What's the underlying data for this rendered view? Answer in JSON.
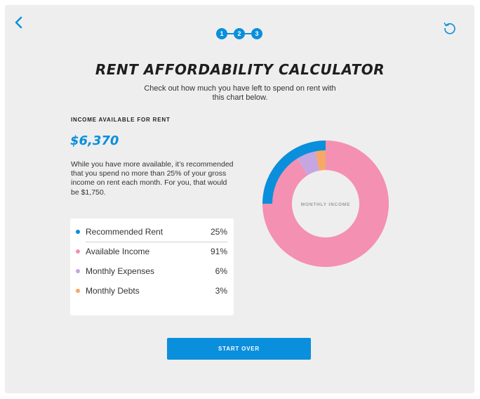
{
  "steps": [
    "1",
    "2",
    "3"
  ],
  "title": "RENT AFFORDABILITY CALCULATOR",
  "subtitle": "Check out how much you have left to spend on rent with this chart below.",
  "income": {
    "label": "INCOME AVAILABLE FOR RENT",
    "amount": "$6,370",
    "description": "While you have more available, it’s recommended that you spend no more than 25% of your gross income on rent each month. For you, that would be $1,750."
  },
  "legend": [
    {
      "label": "Recommended Rent",
      "value": "25%",
      "color": "#0a8fdc"
    },
    {
      "label": "Available Income",
      "value": "91%",
      "color": "#f490b1"
    },
    {
      "label": "Monthly Expenses",
      "value": "6%",
      "color": "#c6a6e0"
    },
    {
      "label": "Monthly Debts",
      "value": "3%",
      "color": "#f7a866"
    }
  ],
  "chart": {
    "center_label": "MONTHLY INCOME",
    "recommended_rent_fraction": 0.25,
    "slices": [
      {
        "name": "Available Income",
        "value": 91,
        "color": "#f490b1"
      },
      {
        "name": "Monthly Expenses",
        "value": 6,
        "color": "#c6a6e0"
      },
      {
        "name": "Monthly Debts",
        "value": 3,
        "color": "#f7a866"
      }
    ]
  },
  "buttons": {
    "start_over": "START OVER"
  },
  "colors": {
    "accent": "#0a8fdc",
    "background": "#eeeeee"
  },
  "icons": {
    "back": "chevron-left-icon",
    "reset": "reset-icon"
  }
}
